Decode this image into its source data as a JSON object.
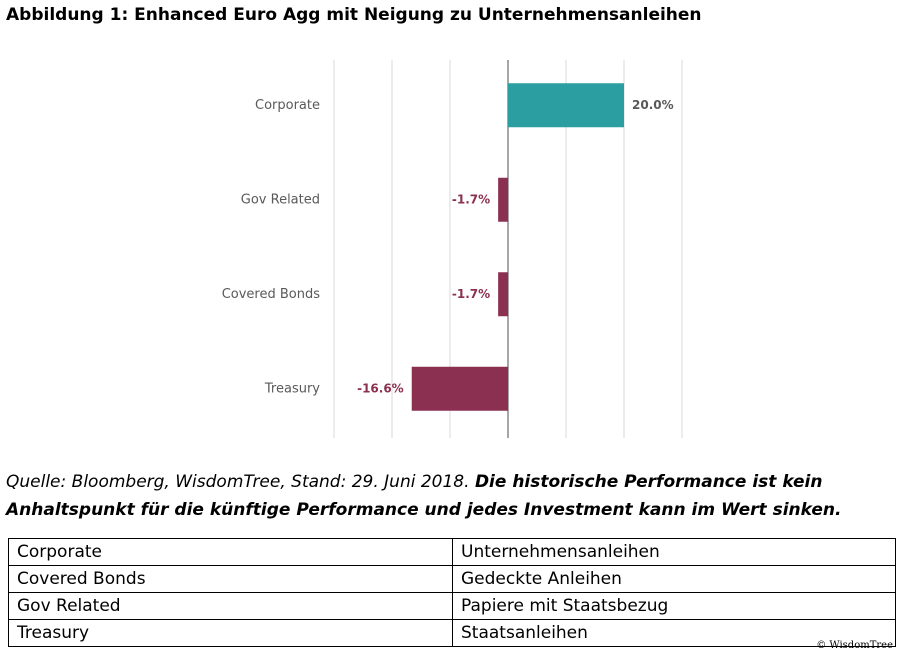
{
  "chart_data": {
    "type": "bar",
    "orientation": "horizontal",
    "title": "Abbildung 1: Enhanced Euro Agg mit Neigung zu Unternehmensanleihen",
    "categories": [
      "Corporate",
      "Gov Related",
      "Covered Bonds",
      "Treasury"
    ],
    "values": [
      20.0,
      -1.7,
      -1.7,
      -16.6
    ],
    "value_labels": [
      "20.0%",
      "-1.7%",
      "-1.7%",
      "-16.6%"
    ],
    "colors": [
      "#2a9ea0",
      "#8b3050",
      "#8b3050",
      "#8b3050"
    ],
    "xlim": [
      -30,
      30
    ],
    "xticks": [
      -30,
      -20,
      -10,
      0,
      10,
      20,
      30
    ],
    "grid": true
  },
  "caption": {
    "source": "Quelle: Bloomberg, WisdomTree, Stand: 29. Juni 2018.",
    "disclaimer": "Die historische Performance ist kein Anhaltspunkt für die künftige Performance und jedes Investment kann im Wert sinken."
  },
  "table": {
    "rows": [
      [
        "Corporate",
        "Unternehmensanleihen"
      ],
      [
        "Covered Bonds",
        "Gedeckte Anleihen"
      ],
      [
        "Gov Related",
        "Papiere mit Staatsbezug"
      ],
      [
        "Treasury",
        "Staatsanleihen"
      ]
    ]
  },
  "footer": "© WisdomTree"
}
